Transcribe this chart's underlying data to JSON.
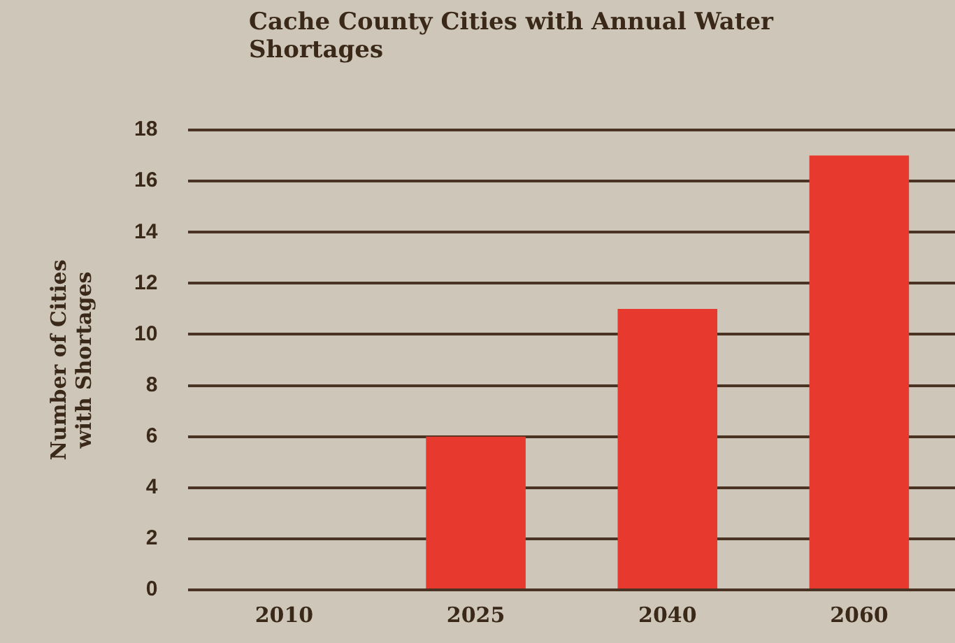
{
  "chart_data": {
    "type": "bar",
    "title": "Cache County Cities with Annual Water Shortages",
    "ylabel": "Number of Cities with Shortages",
    "categories": [
      "2010",
      "2025",
      "2040",
      "2060"
    ],
    "values": [
      0,
      6,
      11,
      17
    ],
    "color": "#e8392f",
    "ylim": [
      0,
      18
    ],
    "yticks": [
      0,
      2,
      4,
      6,
      8,
      10,
      12,
      14,
      16,
      18
    ],
    "grid": "y",
    "legend": false
  }
}
